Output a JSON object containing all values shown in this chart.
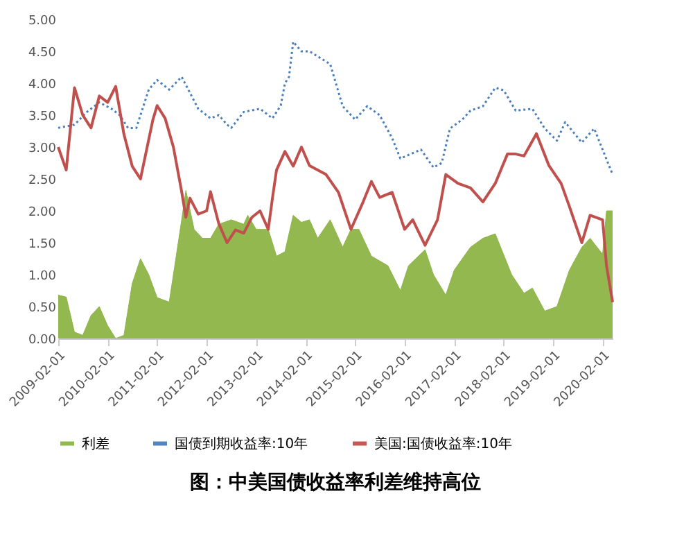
{
  "chart_data": {
    "type": "line",
    "title": "图：中美国债收益率利差维持高位",
    "xlim": [
      "2009-02-01",
      "2020-04-15"
    ],
    "xticks": [
      "2009-02-01",
      "2010-02-01",
      "2011-02-01",
      "2012-02-01",
      "2013-02-01",
      "2014-02-01",
      "2015-02-01",
      "2016-02-01",
      "2017-02-01",
      "2018-02-01",
      "2019-02-01",
      "2020-02-01"
    ],
    "ylim": [
      0,
      5
    ],
    "yticks": [
      {
        "value": 0,
        "label": "0.00"
      },
      {
        "value": 0.5,
        "label": "0.50"
      },
      {
        "value": 1,
        "label": "1.00"
      },
      {
        "value": 1.5,
        "label": "1.50"
      },
      {
        "value": 2,
        "label": "2.00"
      },
      {
        "value": 2.5,
        "label": "2.50"
      },
      {
        "value": 3,
        "label": "3.00"
      },
      {
        "value": 3.5,
        "label": "3.50"
      },
      {
        "value": 4,
        "label": "4.00"
      },
      {
        "value": 4.5,
        "label": "4.50"
      },
      {
        "value": 5,
        "label": "5.00"
      }
    ],
    "grid": false,
    "legend": "bottom",
    "series": [
      {
        "name": "利差",
        "type": "area",
        "color": "#8db446",
        "x": [
          "2009-02-01",
          "2009-04-01",
          "2009-06-01",
          "2009-08-01",
          "2009-10-01",
          "2009-12-01",
          "2010-02-01",
          "2010-04-01",
          "2010-06-01",
          "2010-08-01",
          "2010-10-01",
          "2010-12-01",
          "2011-02-01",
          "2011-05-01",
          "2011-06-01",
          "2011-08-01",
          "2011-09-01",
          "2011-11-01",
          "2012-01-01",
          "2012-03-01",
          "2012-05-01",
          "2012-08-01",
          "2012-11-01",
          "2012-12-01",
          "2013-02-01",
          "2013-05-01",
          "2013-07-01",
          "2013-09-01",
          "2013-11-01",
          "2014-01-01",
          "2014-03-01",
          "2014-05-01",
          "2014-08-01",
          "2014-11-01",
          "2015-01-01",
          "2015-03-01",
          "2015-06-01",
          "2015-10-01",
          "2016-01-01",
          "2016-03-01",
          "2016-07-01",
          "2016-09-01",
          "2016-12-01",
          "2017-02-01",
          "2017-06-01",
          "2017-09-01",
          "2017-12-01",
          "2018-04-01",
          "2018-07-01",
          "2018-09-01",
          "2018-12-01",
          "2019-03-01",
          "2019-06-01",
          "2019-09-01",
          "2019-11-01",
          "2020-02-01",
          "2020-03-01",
          "2020-04-15"
        ],
        "values": [
          0.68,
          0.65,
          0.1,
          0.05,
          0.36,
          0.5,
          0.2,
          0.0,
          0.05,
          0.86,
          1.25,
          1.0,
          0.64,
          0.57,
          1.0,
          1.86,
          2.32,
          1.71,
          1.57,
          1.57,
          1.79,
          1.86,
          1.79,
          1.93,
          1.71,
          1.71,
          1.29,
          1.36,
          1.93,
          1.82,
          1.86,
          1.57,
          1.86,
          1.43,
          1.71,
          1.71,
          1.29,
          1.14,
          0.75,
          1.14,
          1.39,
          1.0,
          0.68,
          1.07,
          1.43,
          1.57,
          1.64,
          1.0,
          0.71,
          0.79,
          0.43,
          0.5,
          1.07,
          1.43,
          1.57,
          1.32,
          2.0,
          2.0
        ]
      },
      {
        "name": "国债到期收益率:10年",
        "line_style": "dotted",
        "color": "#4a7ebb",
        "x": [
          "2009-02-01",
          "2009-06-01",
          "2009-09-01",
          "2009-12-01",
          "2010-03-01",
          "2010-05-01",
          "2010-07-01",
          "2010-09-01",
          "2010-10-01",
          "2010-12-01",
          "2011-02-01",
          "2011-05-01",
          "2011-08-01",
          "2011-10-01",
          "2011-12-01",
          "2012-03-01",
          "2012-05-01",
          "2012-07-01",
          "2012-08-01",
          "2012-11-01",
          "2013-03-01",
          "2013-06-01",
          "2013-08-01",
          "2013-09-01",
          "2013-10-01",
          "2013-11-01",
          "2014-01-01",
          "2014-03-01",
          "2014-08-01",
          "2014-11-01",
          "2015-02-01",
          "2015-05-01",
          "2015-08-01",
          "2015-11-01",
          "2016-01-01",
          "2016-06-01",
          "2016-09-01",
          "2016-11-01",
          "2017-01-01",
          "2017-04-01",
          "2017-06-01",
          "2017-09-01",
          "2017-12-01",
          "2018-02-01",
          "2018-05-01",
          "2018-09-01",
          "2018-12-01",
          "2019-03-01",
          "2019-05-01",
          "2019-09-01",
          "2019-12-01",
          "2020-02-01",
          "2020-04-15"
        ],
        "values": [
          3.3,
          3.35,
          3.55,
          3.7,
          3.6,
          3.5,
          3.3,
          3.3,
          3.5,
          3.9,
          4.05,
          3.9,
          4.1,
          3.85,
          3.6,
          3.45,
          3.5,
          3.35,
          3.3,
          3.55,
          3.6,
          3.45,
          3.65,
          4.0,
          4.1,
          4.65,
          4.5,
          4.5,
          4.3,
          3.64,
          3.43,
          3.64,
          3.5,
          3.14,
          2.82,
          2.96,
          2.68,
          2.75,
          3.29,
          3.43,
          3.57,
          3.64,
          3.93,
          3.89,
          3.57,
          3.6,
          3.29,
          3.1,
          3.39,
          3.07,
          3.29,
          2.96,
          2.57
        ]
      },
      {
        "name": "美国:国债收益率:10年",
        "line_style": "solid",
        "color": "#c0504d",
        "x": [
          "2009-02-01",
          "2009-04-01",
          "2009-06-01",
          "2009-08-01",
          "2009-10-01",
          "2009-12-01",
          "2010-02-01",
          "2010-04-01",
          "2010-06-01",
          "2010-08-01",
          "2010-10-01",
          "2011-01-01",
          "2011-02-01",
          "2011-04-01",
          "2011-06-01",
          "2011-08-01",
          "2011-09-01",
          "2011-10-01",
          "2011-12-01",
          "2012-02-01",
          "2012-03-01",
          "2012-05-01",
          "2012-07-01",
          "2012-09-01",
          "2012-11-01",
          "2013-01-01",
          "2013-03-01",
          "2013-05-01",
          "2013-06-01",
          "2013-07-01",
          "2013-09-01",
          "2013-11-01",
          "2014-01-01",
          "2014-03-01",
          "2014-07-01",
          "2014-10-01",
          "2015-01-01",
          "2015-04-01",
          "2015-06-01",
          "2015-08-01",
          "2015-11-01",
          "2016-02-01",
          "2016-04-01",
          "2016-07-01",
          "2016-10-01",
          "2016-12-01",
          "2017-03-01",
          "2017-06-01",
          "2017-09-01",
          "2017-12-01",
          "2018-03-01",
          "2018-05-01",
          "2018-07-01",
          "2018-10-01",
          "2019-01-01",
          "2019-04-01",
          "2019-06-01",
          "2019-09-01",
          "2019-11-01",
          "2020-02-01",
          "2020-03-01",
          "2020-04-15"
        ],
        "values": [
          3.0,
          2.64,
          3.93,
          3.5,
          3.3,
          3.8,
          3.7,
          3.95,
          3.2,
          2.7,
          2.5,
          3.43,
          3.65,
          3.45,
          3.0,
          2.3,
          1.9,
          2.2,
          1.95,
          2.0,
          2.3,
          1.8,
          1.5,
          1.7,
          1.65,
          1.9,
          2.0,
          1.71,
          2.2,
          2.64,
          2.93,
          2.7,
          3.0,
          2.71,
          2.57,
          2.29,
          1.71,
          2.14,
          2.46,
          2.21,
          2.29,
          1.71,
          1.86,
          1.46,
          1.86,
          2.57,
          2.43,
          2.36,
          2.14,
          2.43,
          2.89,
          2.89,
          2.86,
          3.21,
          2.71,
          2.43,
          2.07,
          1.5,
          1.93,
          1.86,
          1.14,
          0.57
        ]
      }
    ]
  }
}
